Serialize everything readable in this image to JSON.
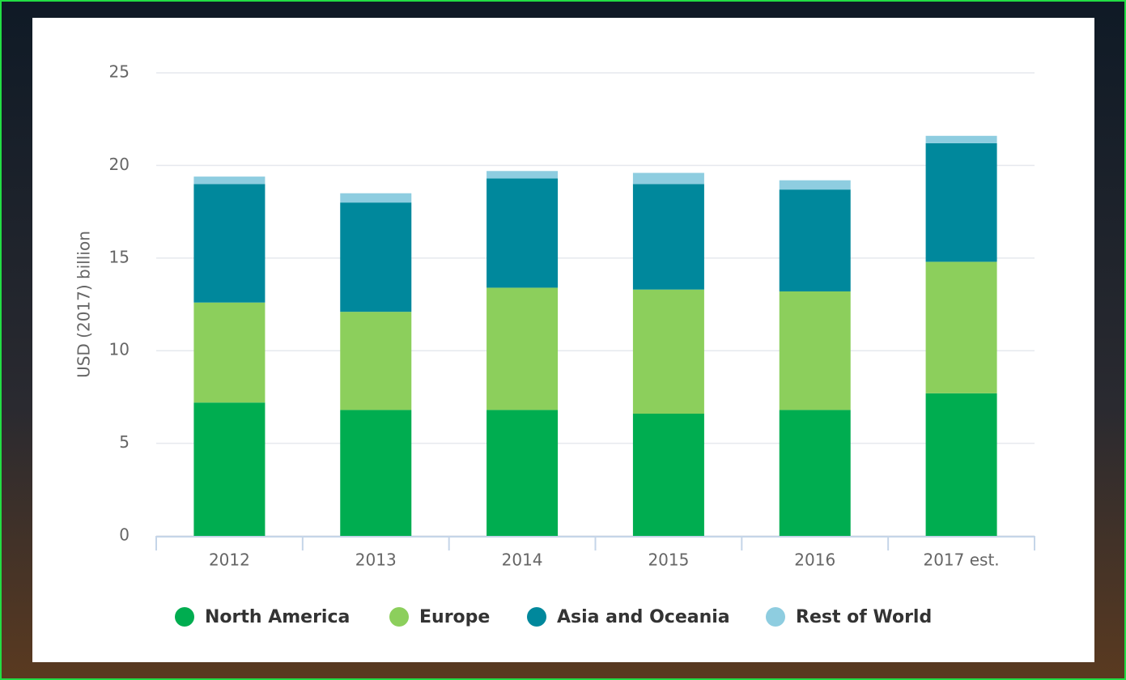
{
  "chart_data": {
    "type": "stacked-bar",
    "y_label": "USD (2017) billion",
    "categories": [
      "2012",
      "2013",
      "2014",
      "2015",
      "2016",
      "2017 est."
    ],
    "series": [
      {
        "name": "North America",
        "color": "#00ad50",
        "values": [
          7.2,
          6.8,
          6.8,
          6.6,
          6.8,
          7.7
        ]
      },
      {
        "name": "Europe",
        "color": "#8ccf5c",
        "values": [
          5.4,
          5.3,
          6.6,
          6.7,
          6.4,
          7.1
        ]
      },
      {
        "name": "Asia and Oceania",
        "color": "#00889c",
        "values": [
          6.4,
          5.9,
          5.9,
          5.7,
          5.5,
          6.4
        ]
      },
      {
        "name": "Rest of World",
        "color": "#8ecde0",
        "values": [
          0.4,
          0.5,
          0.4,
          0.6,
          0.5,
          0.4
        ]
      }
    ],
    "ylim": [
      0,
      25
    ],
    "yticks": [
      0,
      5,
      10,
      15,
      20,
      25
    ],
    "grid": true
  }
}
